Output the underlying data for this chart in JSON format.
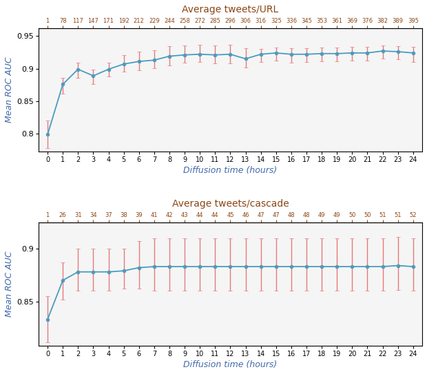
{
  "top": {
    "title": "Average tweets/URL",
    "xlabel": "Diffusion time (hours)",
    "ylabel": "Mean ROC AUC",
    "x": [
      0,
      1,
      2,
      3,
      4,
      5,
      6,
      7,
      8,
      9,
      10,
      11,
      12,
      13,
      14,
      15,
      16,
      17,
      18,
      19,
      20,
      21,
      22,
      23,
      24
    ],
    "top_xtick_labels": [
      "1",
      "78",
      "117",
      "147",
      "171",
      "192",
      "212",
      "229",
      "244",
      "258",
      "272",
      "285",
      "296",
      "306",
      "316",
      "325",
      "336",
      "345",
      "353",
      "361",
      "369",
      "376",
      "382",
      "389",
      "395"
    ],
    "y": [
      0.799,
      0.876,
      0.899,
      0.889,
      0.899,
      0.907,
      0.911,
      0.913,
      0.919,
      0.921,
      0.922,
      0.921,
      0.922,
      0.915,
      0.922,
      0.924,
      0.922,
      0.922,
      0.923,
      0.923,
      0.924,
      0.924,
      0.927,
      0.926,
      0.924
    ],
    "yerr_lo": [
      0.021,
      0.014,
      0.013,
      0.013,
      0.011,
      0.012,
      0.013,
      0.012,
      0.014,
      0.012,
      0.012,
      0.013,
      0.014,
      0.013,
      0.012,
      0.012,
      0.013,
      0.012,
      0.012,
      0.012,
      0.012,
      0.012,
      0.012,
      0.012,
      0.014
    ],
    "yerr_hi": [
      0.021,
      0.01,
      0.01,
      0.01,
      0.01,
      0.014,
      0.015,
      0.015,
      0.015,
      0.014,
      0.014,
      0.014,
      0.015,
      0.016,
      0.008,
      0.008,
      0.009,
      0.009,
      0.009,
      0.009,
      0.009,
      0.009,
      0.008,
      0.008,
      0.009
    ],
    "ylim": [
      0.773,
      0.962
    ],
    "yticks": [
      0.8,
      0.85,
      0.9,
      0.95
    ]
  },
  "bottom": {
    "title": "Average tweets/cascade",
    "xlabel": "Diffusion time (hours)",
    "ylabel": "Mean ROC AUC",
    "x": [
      0,
      1,
      2,
      3,
      4,
      5,
      6,
      7,
      8,
      9,
      10,
      11,
      12,
      13,
      14,
      15,
      16,
      17,
      18,
      19,
      20,
      21,
      22,
      23,
      24
    ],
    "top_xtick_labels": [
      "1",
      "26",
      "31",
      "34",
      "37",
      "38",
      "39",
      "41",
      "42",
      "43",
      "44",
      "44",
      "45",
      "46",
      "47",
      "47",
      "48",
      "48",
      "49",
      "49",
      "50",
      "50",
      "51",
      "51",
      "52"
    ],
    "y": [
      0.833,
      0.87,
      0.878,
      0.878,
      0.878,
      0.879,
      0.882,
      0.883,
      0.883,
      0.883,
      0.883,
      0.883,
      0.883,
      0.883,
      0.883,
      0.883,
      0.883,
      0.883,
      0.883,
      0.883,
      0.883,
      0.883,
      0.883,
      0.884,
      0.883
    ],
    "yerr_lo": [
      0.022,
      0.018,
      0.018,
      0.018,
      0.018,
      0.017,
      0.02,
      0.023,
      0.023,
      0.023,
      0.023,
      0.023,
      0.023,
      0.023,
      0.023,
      0.023,
      0.023,
      0.023,
      0.023,
      0.023,
      0.023,
      0.023,
      0.023,
      0.023,
      0.023
    ],
    "yerr_hi": [
      0.022,
      0.017,
      0.022,
      0.022,
      0.022,
      0.021,
      0.025,
      0.027,
      0.027,
      0.027,
      0.027,
      0.027,
      0.027,
      0.027,
      0.027,
      0.027,
      0.027,
      0.027,
      0.027,
      0.027,
      0.027,
      0.027,
      0.027,
      0.027,
      0.027
    ],
    "ylim": [
      0.808,
      0.925
    ],
    "yticks": [
      0.85,
      0.9
    ]
  },
  "line_color": "#4a9bbe",
  "error_color": "#e87878",
  "marker_color": "#4a9bbe",
  "top_tick_color": "#8B4513",
  "title_color": "#8B4513",
  "axis_label_color": "#4169aa",
  "bg_color": "#f5f5f5",
  "marker": "o",
  "marker_size": 3.5,
  "linewidth": 1.3,
  "capsize": 2.5,
  "elinewidth": 1.0
}
